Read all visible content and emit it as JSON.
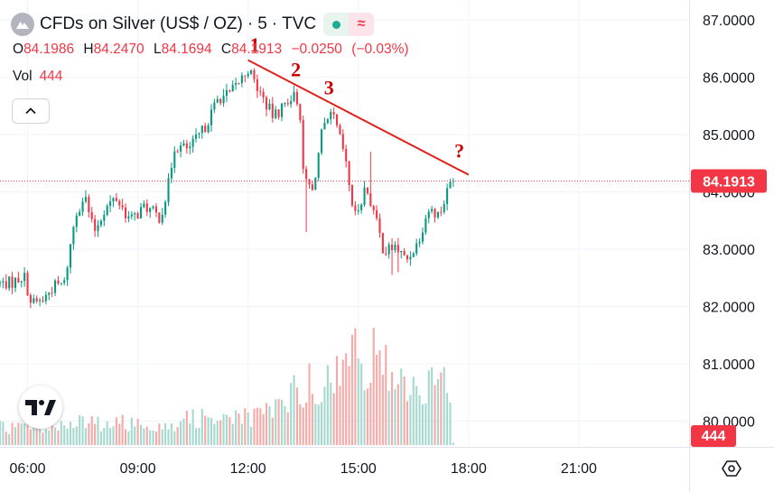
{
  "header": {
    "symbol_title": "CFDs on Silver (US$ / OZ)",
    "separator_1": "·",
    "interval": "5",
    "separator_2": "·",
    "source": "TVC",
    "status_icon": "market-open-dot-icon",
    "delayed_icon": "approx-icon",
    "delayed_label": "≈"
  },
  "ohlc": {
    "open_label": "O",
    "open": "84.1986",
    "high_label": "H",
    "high": "84.2470",
    "low_label": "L",
    "low": "84.1694",
    "close_label": "C",
    "close": "84.1913",
    "change": "−0.0250",
    "change_pct": "(−0.03%)"
  },
  "volume": {
    "label": "Vol",
    "value": "444"
  },
  "colors": {
    "up": "#089981",
    "down": "#f23645",
    "up_volume": "#a5d8cf",
    "down_volume": "#f7a9a7",
    "trendline": "#e0201b",
    "price_line": "#f23645"
  },
  "chart_data": {
    "type": "candlestick",
    "title": "CFDs on Silver (US$ / OZ) · 5 · TVC",
    "y_ticks": [
      "87.0000",
      "86.0000",
      "85.0000",
      "84.0000",
      "83.0000",
      "82.0000",
      "81.0000",
      "80.0000"
    ],
    "ylim": [
      79.55,
      87.35
    ],
    "x_ticks": [
      "06:00",
      "09:00",
      "12:00",
      "15:00",
      "18:00",
      "21:00"
    ],
    "x_tick_hours": [
      6,
      9,
      12,
      15,
      18,
      21
    ],
    "xlim_hours": [
      5.25,
      24.0
    ],
    "last_price": "84.1913",
    "last_volume": "444",
    "anchors": [
      {
        "t": 5.25,
        "p": 82.4
      },
      {
        "t": 5.6,
        "p": 82.42
      },
      {
        "t": 5.9,
        "p": 82.55
      },
      {
        "t": 6.1,
        "p": 82.05
      },
      {
        "t": 6.4,
        "p": 82.1
      },
      {
        "t": 6.7,
        "p": 82.35
      },
      {
        "t": 7.0,
        "p": 82.4
      },
      {
        "t": 7.3,
        "p": 83.6
      },
      {
        "t": 7.55,
        "p": 83.95
      },
      {
        "t": 7.8,
        "p": 83.3
      },
      {
        "t": 8.1,
        "p": 83.7
      },
      {
        "t": 8.4,
        "p": 83.9
      },
      {
        "t": 8.8,
        "p": 83.5
      },
      {
        "t": 9.2,
        "p": 83.75
      },
      {
        "t": 9.6,
        "p": 83.55
      },
      {
        "t": 9.8,
        "p": 84.0
      },
      {
        "t": 10.0,
        "p": 84.8
      },
      {
        "t": 10.4,
        "p": 84.75
      },
      {
        "t": 10.8,
        "p": 85.1
      },
      {
        "t": 11.2,
        "p": 85.65
      },
      {
        "t": 11.5,
        "p": 85.7
      },
      {
        "t": 11.9,
        "p": 86.05
      },
      {
        "t": 12.0,
        "p": 86.15
      },
      {
        "t": 12.3,
        "p": 85.75
      },
      {
        "t": 12.7,
        "p": 85.3
      },
      {
        "t": 13.2,
        "p": 85.7
      },
      {
        "t": 13.4,
        "p": 85.55
      },
      {
        "t": 13.5,
        "p": 84.3
      },
      {
        "t": 13.75,
        "p": 84.0
      },
      {
        "t": 14.0,
        "p": 85.0
      },
      {
        "t": 14.3,
        "p": 85.35
      },
      {
        "t": 14.6,
        "p": 84.7
      },
      {
        "t": 14.9,
        "p": 83.55
      },
      {
        "t": 15.2,
        "p": 84.1
      },
      {
        "t": 15.4,
        "p": 83.7
      },
      {
        "t": 15.7,
        "p": 82.95
      },
      {
        "t": 16.0,
        "p": 83.05
      },
      {
        "t": 16.3,
        "p": 82.8
      },
      {
        "t": 16.6,
        "p": 83.1
      },
      {
        "t": 16.9,
        "p": 83.7
      },
      {
        "t": 17.2,
        "p": 83.6
      },
      {
        "t": 17.5,
        "p": 84.15
      },
      {
        "t": 17.6,
        "p": 84.19
      }
    ],
    "wick_events": [
      {
        "t": 13.55,
        "low": 83.3
      },
      {
        "t": 15.9,
        "low": 82.55
      },
      {
        "t": 15.3,
        "high": 84.7
      },
      {
        "t": 16.05,
        "low": 82.6
      }
    ],
    "volume_profile": [
      {
        "t": 5.25,
        "v": 0.08
      },
      {
        "t": 7.0,
        "v": 0.09
      },
      {
        "t": 7.5,
        "v": 0.1
      },
      {
        "t": 10.0,
        "v": 0.1
      },
      {
        "t": 11.0,
        "v": 0.14
      },
      {
        "t": 12.2,
        "v": 0.12
      },
      {
        "t": 13.0,
        "v": 0.2
      },
      {
        "t": 13.8,
        "v": 0.31
      },
      {
        "t": 14.3,
        "v": 0.26
      },
      {
        "t": 14.9,
        "v": 0.44
      },
      {
        "t": 15.5,
        "v": 0.38
      },
      {
        "t": 16.0,
        "v": 0.31
      },
      {
        "t": 16.6,
        "v": 0.26
      },
      {
        "t": 17.5,
        "v": 0.27
      }
    ],
    "trendline": {
      "from": {
        "t": 12.0,
        "p": 86.3
      },
      "to": {
        "t": 18.0,
        "p": 84.3
      }
    },
    "annotations": [
      {
        "label": "1",
        "t": 12.18,
        "p": 86.45
      },
      {
        "label": "2",
        "t": 13.3,
        "p": 86.02
      },
      {
        "label": "3",
        "t": 14.2,
        "p": 85.7
      },
      {
        "label": "?",
        "t": 17.75,
        "p": 84.6
      }
    ]
  }
}
